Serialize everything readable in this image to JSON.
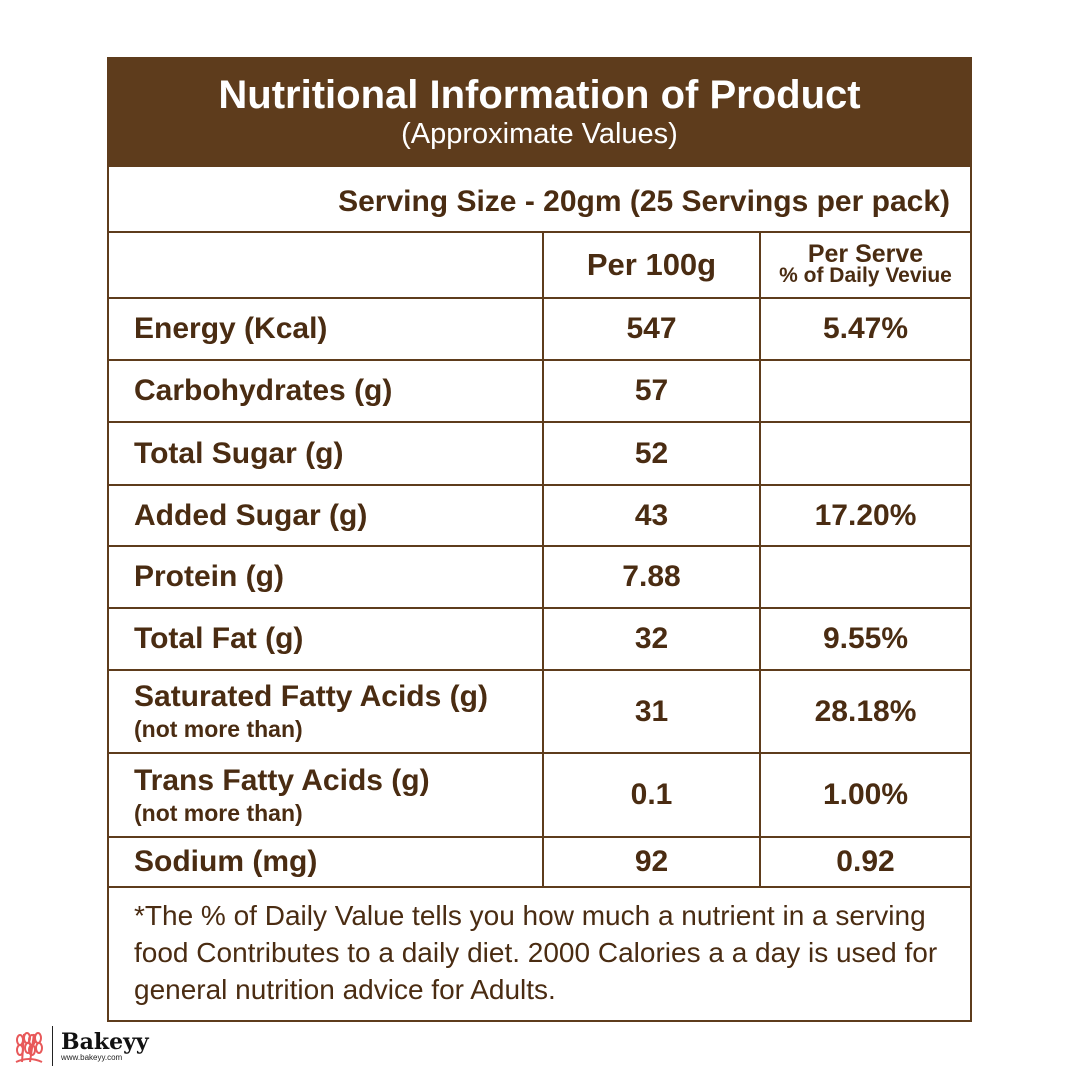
{
  "header": {
    "title": "Nutritional Information of Product",
    "subtitle": "(Approximate Values)"
  },
  "serving": "Serving Size - 20gm (25 Servings per pack)",
  "columns": {
    "per100": "Per 100g",
    "perserve": "Per Serve",
    "perserve_sub": "% of Daily Veviue"
  },
  "rows": [
    {
      "name": "Energy (Kcal)",
      "sub": "",
      "per100": "547",
      "dv": "5.47%"
    },
    {
      "name": "Carbohydrates (g)",
      "sub": "",
      "per100": "57",
      "dv": ""
    },
    {
      "name": "Total Sugar (g)",
      "sub": "",
      "per100": "52",
      "dv": ""
    },
    {
      "name": "Added Sugar (g)",
      "sub": "",
      "per100": "43",
      "dv": "17.20%"
    },
    {
      "name": "Protein (g)",
      "sub": "",
      "per100": "7.88",
      "dv": ""
    },
    {
      "name": "Total Fat (g)",
      "sub": "",
      "per100": "32",
      "dv": "9.55%"
    },
    {
      "name": "Saturated Fatty Acids (g)",
      "sub": "(not more than)",
      "per100": "31",
      "dv": "28.18%"
    },
    {
      "name": "Trans Fatty Acids (g)",
      "sub": "(not more than)",
      "per100": "0.1",
      "dv": "1.00%"
    },
    {
      "name": "Sodium (mg)",
      "sub": "",
      "per100": "92",
      "dv": "0.92"
    }
  ],
  "footnote": "*The % of Daily Value tells you how much a nutrient in a serving food Contributes to  a daily diet. 2000 Calories a a day is used for general nutrition advice for Adults.",
  "logo": {
    "name": "Bakeyy",
    "url": "www.bakeyy.com",
    "icon": "wheat-icon"
  },
  "colors": {
    "brown": "#5e3c1c",
    "text": "#4a2c12",
    "logo_icon": "#e8595a"
  }
}
